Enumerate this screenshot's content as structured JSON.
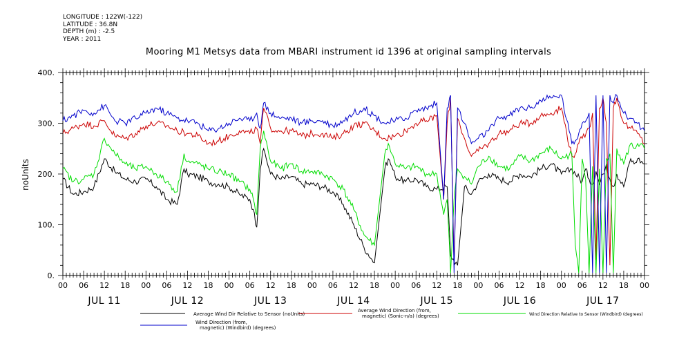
{
  "meta": {
    "longitude": "LONGITUDE : 122W(-122)",
    "latitude": "LATITUDE : 36.8N",
    "depth": "DEPTH (m) : -2.5",
    "year": "YEAR : 2011"
  },
  "chart_data": {
    "type": "line",
    "title": "Mooring M1 Metsys data from MBARI instrument id 1396 at original sampling intervals",
    "ylabel": "noUnits",
    "xlabel": "",
    "ylim": [
      0,
      400
    ],
    "yticks": [
      "0.",
      "100.",
      "200.",
      "300.",
      "400."
    ],
    "xlim_hours": [
      0,
      168
    ],
    "hour_ticks": [
      "00",
      "06",
      "12",
      "18",
      "00",
      "06",
      "12",
      "18",
      "00",
      "06",
      "12",
      "18",
      "00",
      "06",
      "12",
      "18",
      "00",
      "06",
      "12",
      "18",
      "00",
      "06",
      "12",
      "18",
      "00",
      "06",
      "12",
      "18",
      "00"
    ],
    "day_labels": [
      "JUL 11",
      "JUL 12",
      "JUL 13",
      "JUL 14",
      "JUL 15",
      "JUL 16",
      "JUL 17"
    ],
    "grid": false,
    "legend_position": "bottom",
    "series": [
      {
        "name": "Average Wind Dir Relative to Sensor (noUnits)",
        "color": "#000000",
        "x": [
          0,
          3,
          6,
          9,
          12,
          15,
          18,
          21,
          24,
          27,
          30,
          33,
          35,
          36,
          39,
          42,
          45,
          48,
          51,
          54,
          55,
          56,
          57,
          58,
          60,
          63,
          66,
          69,
          72,
          75,
          78,
          81,
          84,
          87,
          90,
          93,
          94,
          95,
          96,
          99,
          102,
          105,
          108,
          111,
          112,
          114,
          116,
          118,
          120,
          123,
          126,
          129,
          132,
          135,
          138,
          141,
          144,
          147,
          150,
          151,
          152,
          153,
          154,
          155,
          156,
          157,
          158,
          159,
          160,
          162,
          164,
          165,
          166,
          168
        ],
        "y": [
          190,
          160,
          165,
          175,
          230,
          205,
          190,
          185,
          190,
          175,
          150,
          140,
          210,
          200,
          195,
          185,
          180,
          175,
          160,
          150,
          130,
          95,
          210,
          250,
          200,
          190,
          195,
          180,
          180,
          175,
          165,
          140,
          100,
          55,
          25,
          210,
          230,
          215,
          195,
          185,
          190,
          175,
          170,
          175,
          40,
          20,
          175,
          160,
          185,
          200,
          190,
          185,
          200,
          195,
          210,
          220,
          200,
          210,
          185,
          210,
          190,
          180,
          205,
          180,
          200,
          220,
          190,
          175,
          200,
          175,
          230,
          220,
          230,
          220
        ]
      },
      {
        "name": "Average Wind Direction (from, magnetic) (Sonic-n/a) (degrees)",
        "color": "#cc0000",
        "x": [
          0,
          3,
          6,
          9,
          12,
          15,
          18,
          21,
          24,
          27,
          30,
          33,
          36,
          39,
          42,
          45,
          48,
          51,
          54,
          56,
          57,
          58,
          60,
          63,
          66,
          69,
          72,
          75,
          78,
          81,
          84,
          87,
          90,
          93,
          96,
          99,
          102,
          105,
          108,
          110,
          111,
          112,
          113,
          114,
          116,
          118,
          120,
          123,
          126,
          129,
          132,
          135,
          138,
          141,
          144,
          147,
          148,
          149,
          150,
          152,
          153,
          154,
          155,
          156,
          157,
          158,
          159,
          160,
          162,
          164,
          166,
          168
        ],
        "y": [
          280,
          290,
          300,
          295,
          305,
          275,
          270,
          280,
          295,
          300,
          295,
          285,
          280,
          275,
          260,
          265,
          275,
          285,
          280,
          290,
          260,
          330,
          290,
          285,
          285,
          275,
          280,
          280,
          270,
          280,
          295,
          300,
          285,
          270,
          275,
          285,
          300,
          305,
          315,
          150,
          300,
          350,
          20,
          310,
          270,
          235,
          245,
          260,
          280,
          285,
          300,
          300,
          315,
          320,
          330,
          235,
          240,
          260,
          270,
          290,
          320,
          30,
          330,
          350,
          300,
          20,
          330,
          350,
          300,
          290,
          280,
          260
        ]
      },
      {
        "name": "Wind Direction Relative to Sensor (Windbird) (degrees)",
        "color": "#00dd00",
        "x": [
          0,
          3,
          6,
          9,
          12,
          15,
          18,
          21,
          24,
          27,
          30,
          33,
          35,
          36,
          39,
          42,
          45,
          48,
          51,
          54,
          55,
          56,
          57,
          58,
          60,
          63,
          66,
          69,
          72,
          75,
          78,
          81,
          84,
          87,
          90,
          93,
          94,
          95,
          96,
          99,
          102,
          105,
          108,
          110,
          111,
          112,
          113,
          114,
          116,
          118,
          120,
          123,
          126,
          129,
          132,
          135,
          138,
          141,
          144,
          147,
          148,
          149,
          150,
          151,
          152,
          153,
          154,
          155,
          156,
          157,
          158,
          159,
          160,
          162,
          164,
          165,
          166,
          168
        ],
        "y": [
          210,
          185,
          190,
          200,
          270,
          240,
          220,
          210,
          215,
          200,
          185,
          165,
          240,
          225,
          220,
          210,
          205,
          200,
          185,
          170,
          150,
          120,
          250,
          285,
          225,
          210,
          220,
          205,
          205,
          200,
          190,
          170,
          130,
          80,
          60,
          240,
          260,
          240,
          220,
          210,
          215,
          200,
          200,
          120,
          150,
          5,
          150,
          210,
          195,
          180,
          215,
          235,
          215,
          210,
          235,
          225,
          240,
          250,
          230,
          240,
          60,
          5,
          230,
          190,
          5,
          215,
          5,
          210,
          5,
          230,
          240,
          5,
          250,
          220,
          260,
          250,
          260,
          250
        ]
      },
      {
        "name": "Wind Direction (from, magnetic) (Windbird) (degrees)",
        "color": "#0000cc",
        "x": [
          0,
          3,
          6,
          9,
          12,
          15,
          18,
          21,
          24,
          27,
          30,
          33,
          36,
          39,
          42,
          45,
          48,
          51,
          54,
          56,
          57,
          58,
          60,
          63,
          66,
          69,
          72,
          75,
          78,
          81,
          84,
          87,
          90,
          93,
          96,
          99,
          102,
          105,
          108,
          110,
          111,
          112,
          113,
          114,
          116,
          118,
          120,
          123,
          126,
          129,
          132,
          135,
          138,
          141,
          144,
          147,
          148,
          149,
          150,
          152,
          153,
          154,
          155,
          156,
          157,
          158,
          159,
          160,
          162,
          164,
          166,
          168
        ],
        "y": [
          305,
          315,
          325,
          320,
          335,
          305,
          300,
          310,
          320,
          330,
          320,
          310,
          305,
          300,
          285,
          290,
          300,
          310,
          305,
          320,
          290,
          340,
          320,
          310,
          310,
          300,
          305,
          305,
          295,
          305,
          320,
          330,
          315,
          300,
          305,
          310,
          325,
          330,
          340,
          150,
          330,
          355,
          5,
          330,
          300,
          260,
          270,
          285,
          310,
          315,
          330,
          330,
          345,
          350,
          355,
          260,
          265,
          280,
          300,
          320,
          5,
          355,
          5,
          355,
          5,
          355,
          340,
          355,
          320,
          310,
          300,
          285
        ]
      }
    ]
  }
}
